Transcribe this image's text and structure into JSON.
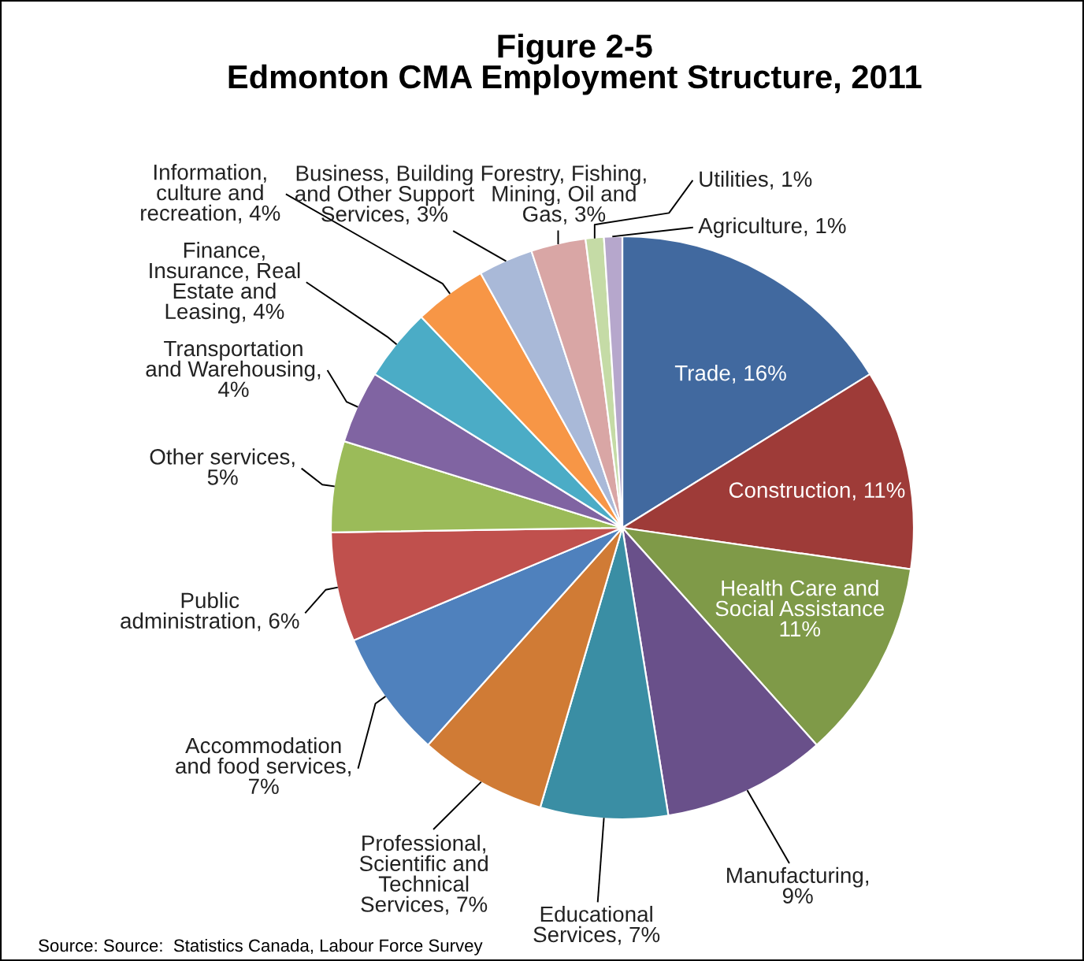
{
  "chart_data": {
    "type": "pie",
    "title": "Figure 2-5\nEdmonton CMA Employment Structure, 2011",
    "categories": [
      "Trade, 16%",
      "Construction, 11%",
      "Health Care and\nSocial Assistance\n11%",
      "Manufacturing,\n9%",
      "Educational\nServices, 7%",
      "Professional,\nScientific and\nTechnical\nServices, 7%",
      "Accommodation\nand food services,\n7%",
      "Public\nadministration, 6%",
      "Other services,\n5%",
      "Transportation\nand Warehousing,\n4%",
      "Finance,\nInsurance, Real\nEstate and\nLeasing, 4%",
      "Information,\nculture and\nrecreation, 4%",
      "Business, Building\nand Other Support\nServices, 3%",
      "Forestry, Fishing,\nMining, Oil and\nGas, 3%",
      "Utilities, 1%",
      "Agriculture, 1%"
    ],
    "values": [
      16,
      11,
      11,
      9,
      7,
      7,
      7,
      6,
      5,
      4,
      4,
      4,
      3,
      3,
      1,
      1
    ],
    "colors": [
      "#41699f",
      "#9e3b38",
      "#7f9a48",
      "#69508a",
      "#3a8ea4",
      "#d07b35",
      "#4f81bd",
      "#c0504d",
      "#9bbb59",
      "#8064a2",
      "#4bacc6",
      "#f79646",
      "#a9b9d8",
      "#d9a6a5",
      "#c5dba6",
      "#b6a7cc"
    ],
    "annotations": [
      "Source: Source:  Statistics Canada, Labour Force Survey"
    ]
  }
}
